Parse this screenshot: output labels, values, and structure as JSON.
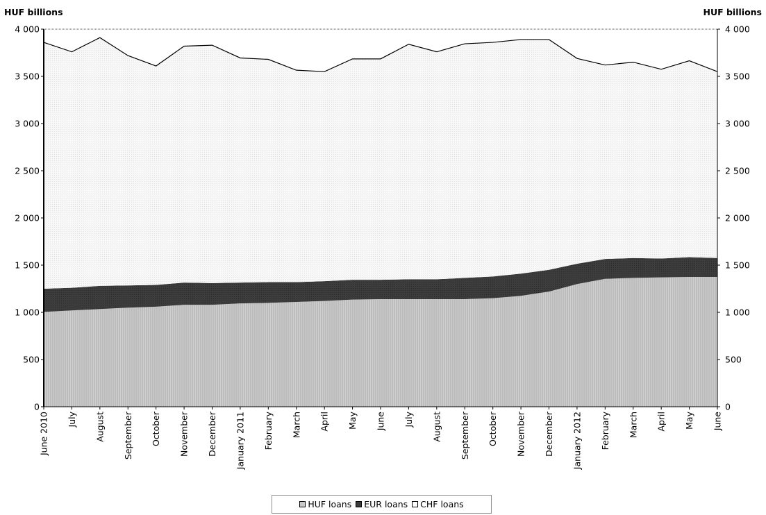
{
  "chart_data": {
    "type": "area",
    "unit_left": "HUF billions",
    "unit_right": "HUF billions",
    "categories": [
      "June 2010",
      "July",
      "August",
      "September",
      "October",
      "November",
      "December",
      "January 2011",
      "February",
      "March",
      "April",
      "May",
      "June",
      "July",
      "August",
      "September",
      "October",
      "November",
      "December",
      "January 2012",
      "February",
      "March",
      "April",
      "May",
      "June"
    ],
    "series": [
      {
        "name": "HUF loans",
        "values": [
          1005,
          1020,
          1035,
          1050,
          1060,
          1080,
          1080,
          1095,
          1100,
          1110,
          1120,
          1135,
          1140,
          1140,
          1140,
          1140,
          1150,
          1175,
          1220,
          1300,
          1355,
          1365,
          1370,
          1375,
          1375
        ],
        "color": "#c8c8c8"
      },
      {
        "name": "EUR loans",
        "values": [
          245,
          240,
          245,
          235,
          230,
          235,
          230,
          220,
          220,
          210,
          210,
          210,
          205,
          210,
          210,
          225,
          230,
          235,
          230,
          215,
          210,
          210,
          200,
          210,
          200
        ],
        "color": "#3a3a3a"
      },
      {
        "name": "CHF loans",
        "values": [
          2610,
          2500,
          2630,
          2435,
          2320,
          2505,
          2520,
          2380,
          2360,
          2245,
          2220,
          2340,
          2340,
          2490,
          2410,
          2480,
          2480,
          2480,
          2440,
          2175,
          2055,
          2075,
          2005,
          2080,
          1975
        ],
        "color": "#f4f4f4"
      }
    ],
    "ylim": [
      0,
      4000
    ],
    "yticks": [
      0,
      500,
      1000,
      1500,
      2000,
      2500,
      3000,
      3500,
      4000
    ],
    "tick_labels": [
      "0",
      "500",
      "1 000",
      "1 500",
      "2 000",
      "2 500",
      "3 000",
      "3 500",
      "4 000"
    ],
    "grid": false,
    "legend_position": "bottom"
  }
}
